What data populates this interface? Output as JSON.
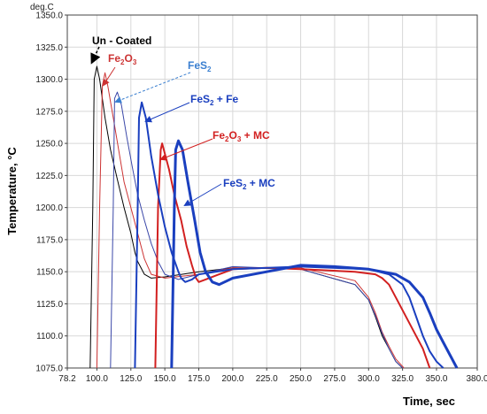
{
  "chart_data": {
    "type": "line",
    "y_unit_label": "deg.C",
    "xlabel": "Time, sec",
    "ylabel": "Temperature, °C",
    "xlim": [
      78.2,
      380.0
    ],
    "ylim": [
      1075.0,
      1350.0
    ],
    "x_ticks": [
      "78.2",
      "100.0",
      "125.0",
      "150.0",
      "175.0",
      "200.0",
      "225.0",
      "250.0",
      "275.0",
      "300.0",
      "325.0",
      "350.0",
      "380.0"
    ],
    "x_tick_values": [
      78.2,
      100,
      125,
      150,
      175,
      200,
      225,
      250,
      275,
      300,
      325,
      350,
      380
    ],
    "y_ticks": [
      "1075.0",
      "1100.0",
      "1125.0",
      "1150.0",
      "1175.0",
      "1200.0",
      "1225.0",
      "1250.0",
      "1275.0",
      "1300.0",
      "1325.0",
      "1350.0"
    ],
    "y_tick_values": [
      1075,
      1100,
      1125,
      1150,
      1175,
      1200,
      1225,
      1250,
      1275,
      1300,
      1325,
      1350
    ],
    "grid": true,
    "series": [
      {
        "name": "Un - Coated",
        "color": "#000000",
        "width": 1,
        "x": [
          95,
          97,
          98,
          100,
          102,
          106,
          110,
          115,
          120,
          125,
          128,
          130,
          135,
          140,
          150,
          175,
          200,
          250,
          290,
          300,
          305,
          310,
          315,
          320,
          325
        ],
        "y": [
          1075,
          1200,
          1300,
          1310,
          1300,
          1270,
          1245,
          1222,
          1200,
          1180,
          1165,
          1158,
          1148,
          1145,
          1146,
          1150,
          1153,
          1152,
          1140,
          1128,
          1115,
          1100,
          1090,
          1080,
          1075
        ]
      },
      {
        "name": "Fe2O3",
        "color": "#cc3333",
        "width": 1,
        "x": [
          100,
          102,
          104,
          106,
          108,
          112,
          116,
          120,
          125,
          130,
          135,
          140,
          150,
          175,
          200,
          250,
          290,
          300,
          305,
          310,
          315,
          320,
          326
        ],
        "y": [
          1075,
          1200,
          1295,
          1305,
          1295,
          1270,
          1245,
          1220,
          1200,
          1180,
          1160,
          1148,
          1145,
          1148,
          1153,
          1153,
          1143,
          1130,
          1118,
          1103,
          1092,
          1082,
          1075
        ]
      },
      {
        "name": "FeS2",
        "color": "#3a47a8",
        "width": 1,
        "x": [
          110,
          112,
          113,
          115,
          118,
          122,
          126,
          130,
          135,
          140,
          145,
          150,
          160,
          175,
          200,
          250,
          290,
          300,
          305,
          310,
          315,
          320,
          325
        ],
        "y": [
          1075,
          1200,
          1285,
          1290,
          1280,
          1255,
          1232,
          1210,
          1190,
          1172,
          1158,
          1148,
          1144,
          1148,
          1154,
          1152,
          1140,
          1128,
          1116,
          1102,
          1090,
          1080,
          1075
        ]
      },
      {
        "name": "Fe2O3 + MC",
        "color": "#d22020",
        "width": 2,
        "x": [
          143,
          145,
          147,
          148,
          150,
          153,
          157,
          162,
          166,
          170,
          173,
          175,
          180,
          190,
          200,
          225,
          250,
          290,
          305,
          310,
          315,
          320,
          330,
          340,
          345
        ],
        "y": [
          1075,
          1200,
          1245,
          1250,
          1242,
          1230,
          1210,
          1190,
          1170,
          1155,
          1145,
          1142,
          1144,
          1148,
          1152,
          1153,
          1152,
          1150,
          1148,
          1145,
          1140,
          1130,
          1110,
          1090,
          1075
        ]
      },
      {
        "name": "FeS2 + Fe",
        "color": "#1a3fbf",
        "width": 2,
        "x": [
          128,
          130,
          131,
          133,
          136,
          140,
          145,
          150,
          155,
          160,
          162,
          165,
          170,
          175,
          200,
          250,
          300,
          315,
          325,
          330,
          335,
          340,
          345,
          350,
          355
        ],
        "y": [
          1075,
          1200,
          1270,
          1282,
          1270,
          1240,
          1210,
          1185,
          1165,
          1150,
          1145,
          1142,
          1144,
          1148,
          1152,
          1154,
          1152,
          1148,
          1140,
          1130,
          1115,
          1100,
          1088,
          1080,
          1075
        ]
      },
      {
        "name": "FeS2 + MC",
        "color": "#1a3fbf",
        "width": 3,
        "x": [
          155,
          157,
          158,
          160,
          163,
          167,
          172,
          176,
          180,
          185,
          190,
          200,
          225,
          250,
          275,
          300,
          320,
          330,
          340,
          345,
          350,
          355,
          360,
          365
        ],
        "y": [
          1075,
          1200,
          1245,
          1252,
          1245,
          1220,
          1190,
          1165,
          1150,
          1142,
          1140,
          1145,
          1150,
          1155,
          1154,
          1152,
          1148,
          1142,
          1130,
          1118,
          1105,
          1095,
          1085,
          1075
        ]
      }
    ],
    "annotations": [
      {
        "text": "Un - Coated",
        "color": "#000000"
      },
      {
        "text": "Fe",
        "sub": "2",
        "text2": "O",
        "sub2": "3",
        "text3": "",
        "color": "#cc3333"
      },
      {
        "text": "FeS",
        "sub": "2",
        "text2": "",
        "sub2": "",
        "text3": "",
        "color": "#3a7fd0"
      },
      {
        "text": "FeS",
        "sub": "2",
        "text2": " + Fe",
        "sub2": "",
        "text3": "",
        "color": "#1a3fbf"
      },
      {
        "text": "Fe",
        "sub": "2",
        "text2": "O",
        "sub2": "3",
        "text3": " + MC",
        "color": "#d22020"
      },
      {
        "text": "FeS",
        "sub": "2",
        "text2": " + MC",
        "sub2": "",
        "text3": "",
        "color": "#1a3fbf"
      }
    ]
  }
}
